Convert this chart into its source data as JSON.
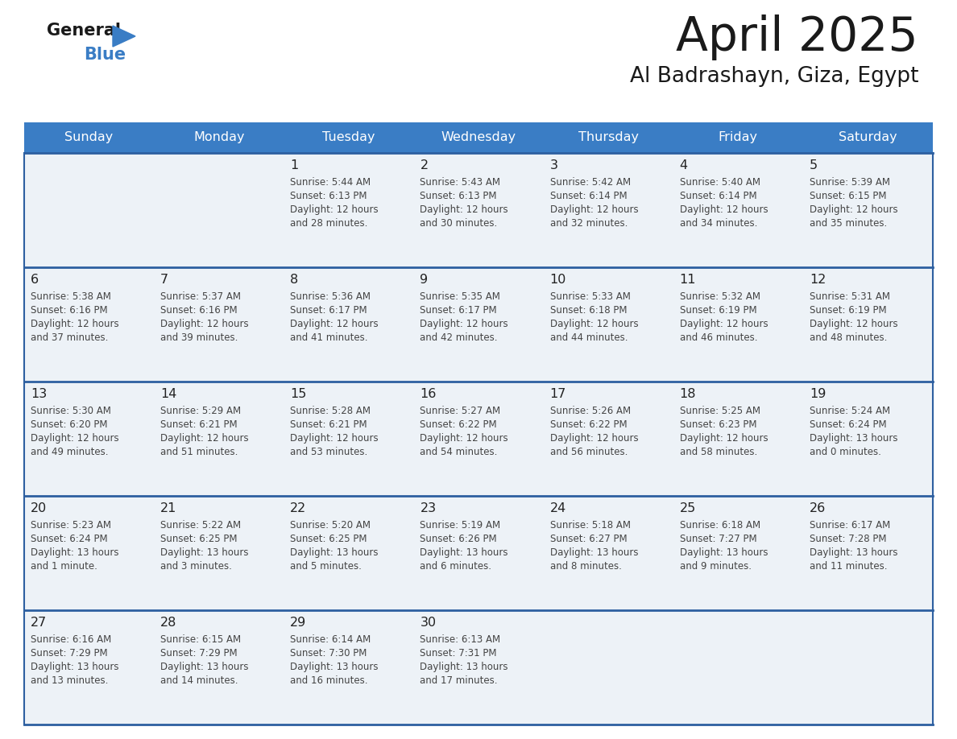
{
  "title": "April 2025",
  "subtitle": "Al Badrashayn, Giza, Egypt",
  "days_of_week": [
    "Sunday",
    "Monday",
    "Tuesday",
    "Wednesday",
    "Thursday",
    "Friday",
    "Saturday"
  ],
  "header_bg": "#3a7dc5",
  "header_text": "#ffffff",
  "cell_bg_odd": "#edf2f7",
  "cell_bg_even": "#ffffff",
  "line_color": "#2d5fa0",
  "text_color": "#333333",
  "title_color": "#1a1a1a",
  "calendar_data": [
    [
      {
        "day": "",
        "info": ""
      },
      {
        "day": "",
        "info": ""
      },
      {
        "day": "1",
        "info": "Sunrise: 5:44 AM\nSunset: 6:13 PM\nDaylight: 12 hours\nand 28 minutes."
      },
      {
        "day": "2",
        "info": "Sunrise: 5:43 AM\nSunset: 6:13 PM\nDaylight: 12 hours\nand 30 minutes."
      },
      {
        "day": "3",
        "info": "Sunrise: 5:42 AM\nSunset: 6:14 PM\nDaylight: 12 hours\nand 32 minutes."
      },
      {
        "day": "4",
        "info": "Sunrise: 5:40 AM\nSunset: 6:14 PM\nDaylight: 12 hours\nand 34 minutes."
      },
      {
        "day": "5",
        "info": "Sunrise: 5:39 AM\nSunset: 6:15 PM\nDaylight: 12 hours\nand 35 minutes."
      }
    ],
    [
      {
        "day": "6",
        "info": "Sunrise: 5:38 AM\nSunset: 6:16 PM\nDaylight: 12 hours\nand 37 minutes."
      },
      {
        "day": "7",
        "info": "Sunrise: 5:37 AM\nSunset: 6:16 PM\nDaylight: 12 hours\nand 39 minutes."
      },
      {
        "day": "8",
        "info": "Sunrise: 5:36 AM\nSunset: 6:17 PM\nDaylight: 12 hours\nand 41 minutes."
      },
      {
        "day": "9",
        "info": "Sunrise: 5:35 AM\nSunset: 6:17 PM\nDaylight: 12 hours\nand 42 minutes."
      },
      {
        "day": "10",
        "info": "Sunrise: 5:33 AM\nSunset: 6:18 PM\nDaylight: 12 hours\nand 44 minutes."
      },
      {
        "day": "11",
        "info": "Sunrise: 5:32 AM\nSunset: 6:19 PM\nDaylight: 12 hours\nand 46 minutes."
      },
      {
        "day": "12",
        "info": "Sunrise: 5:31 AM\nSunset: 6:19 PM\nDaylight: 12 hours\nand 48 minutes."
      }
    ],
    [
      {
        "day": "13",
        "info": "Sunrise: 5:30 AM\nSunset: 6:20 PM\nDaylight: 12 hours\nand 49 minutes."
      },
      {
        "day": "14",
        "info": "Sunrise: 5:29 AM\nSunset: 6:21 PM\nDaylight: 12 hours\nand 51 minutes."
      },
      {
        "day": "15",
        "info": "Sunrise: 5:28 AM\nSunset: 6:21 PM\nDaylight: 12 hours\nand 53 minutes."
      },
      {
        "day": "16",
        "info": "Sunrise: 5:27 AM\nSunset: 6:22 PM\nDaylight: 12 hours\nand 54 minutes."
      },
      {
        "day": "17",
        "info": "Sunrise: 5:26 AM\nSunset: 6:22 PM\nDaylight: 12 hours\nand 56 minutes."
      },
      {
        "day": "18",
        "info": "Sunrise: 5:25 AM\nSunset: 6:23 PM\nDaylight: 12 hours\nand 58 minutes."
      },
      {
        "day": "19",
        "info": "Sunrise: 5:24 AM\nSunset: 6:24 PM\nDaylight: 13 hours\nand 0 minutes."
      }
    ],
    [
      {
        "day": "20",
        "info": "Sunrise: 5:23 AM\nSunset: 6:24 PM\nDaylight: 13 hours\nand 1 minute."
      },
      {
        "day": "21",
        "info": "Sunrise: 5:22 AM\nSunset: 6:25 PM\nDaylight: 13 hours\nand 3 minutes."
      },
      {
        "day": "22",
        "info": "Sunrise: 5:20 AM\nSunset: 6:25 PM\nDaylight: 13 hours\nand 5 minutes."
      },
      {
        "day": "23",
        "info": "Sunrise: 5:19 AM\nSunset: 6:26 PM\nDaylight: 13 hours\nand 6 minutes."
      },
      {
        "day": "24",
        "info": "Sunrise: 5:18 AM\nSunset: 6:27 PM\nDaylight: 13 hours\nand 8 minutes."
      },
      {
        "day": "25",
        "info": "Sunrise: 6:18 AM\nSunset: 7:27 PM\nDaylight: 13 hours\nand 9 minutes."
      },
      {
        "day": "26",
        "info": "Sunrise: 6:17 AM\nSunset: 7:28 PM\nDaylight: 13 hours\nand 11 minutes."
      }
    ],
    [
      {
        "day": "27",
        "info": "Sunrise: 6:16 AM\nSunset: 7:29 PM\nDaylight: 13 hours\nand 13 minutes."
      },
      {
        "day": "28",
        "info": "Sunrise: 6:15 AM\nSunset: 7:29 PM\nDaylight: 13 hours\nand 14 minutes."
      },
      {
        "day": "29",
        "info": "Sunrise: 6:14 AM\nSunset: 7:30 PM\nDaylight: 13 hours\nand 16 minutes."
      },
      {
        "day": "30",
        "info": "Sunrise: 6:13 AM\nSunset: 7:31 PM\nDaylight: 13 hours\nand 17 minutes."
      },
      {
        "day": "",
        "info": ""
      },
      {
        "day": "",
        "info": ""
      },
      {
        "day": "",
        "info": ""
      }
    ]
  ]
}
